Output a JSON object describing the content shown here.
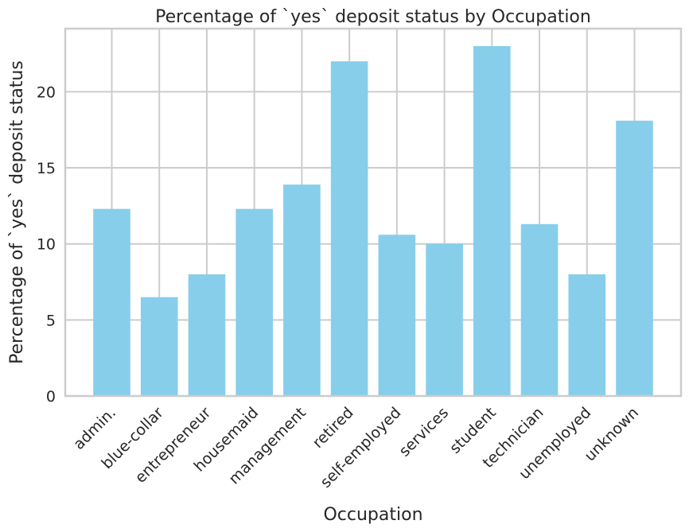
{
  "chart_data": {
    "type": "bar",
    "title": "Percentage of `yes` deposit status by Occupation",
    "xlabel": "Occupation",
    "ylabel": "Percentage of `yes` deposit status",
    "categories": [
      "admin.",
      "blue-collar",
      "entrepreneur",
      "housemaid",
      "management",
      "retired",
      "self-employed",
      "services",
      "student",
      "technician",
      "unemployed",
      "unknown"
    ],
    "values": [
      12.3,
      6.5,
      8.0,
      12.3,
      13.9,
      22.0,
      10.6,
      10.0,
      23.0,
      11.3,
      8.0,
      18.1
    ],
    "yticks": [
      0,
      5,
      10,
      15,
      20
    ],
    "ylim": [
      0,
      24.15
    ],
    "grid": true,
    "bar_color": "#87ceeb",
    "grid_color": "#cccccc"
  }
}
